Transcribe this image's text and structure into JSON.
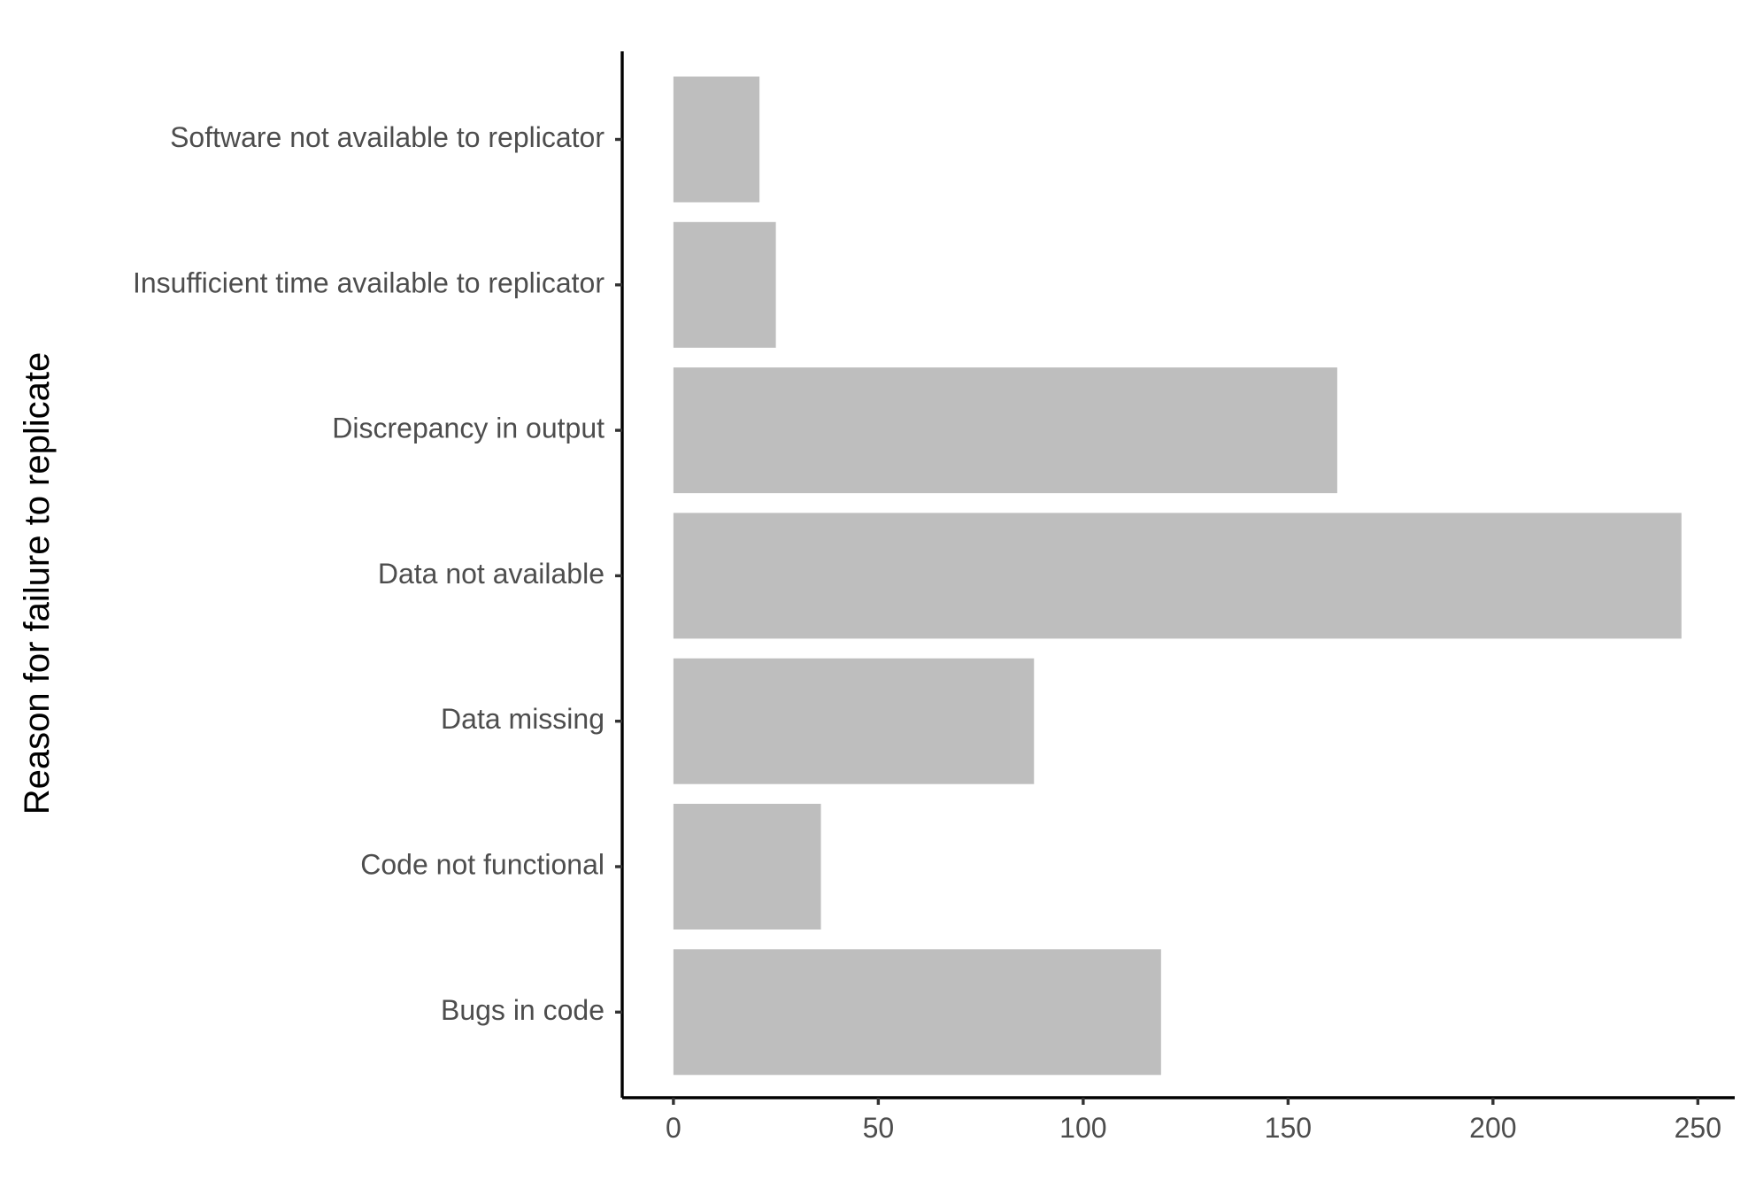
{
  "chart_data": {
    "type": "bar",
    "orientation": "horizontal",
    "title": "",
    "xlabel": "",
    "ylabel": "Reason for failure to replicate",
    "categories": [
      "Software not available to replicator",
      "Insufficient time available to replicator",
      "Discrepancy in output",
      "Data not available",
      "Data missing",
      "Code not functional",
      "Bugs in code"
    ],
    "values": [
      21,
      25,
      162,
      246,
      88,
      36,
      119
    ],
    "xlim": [
      -12.5,
      259
    ],
    "xticks": [
      0,
      50,
      100,
      150,
      200,
      250
    ],
    "grid": false,
    "legend": "none",
    "bar_color": "#bebebe"
  }
}
